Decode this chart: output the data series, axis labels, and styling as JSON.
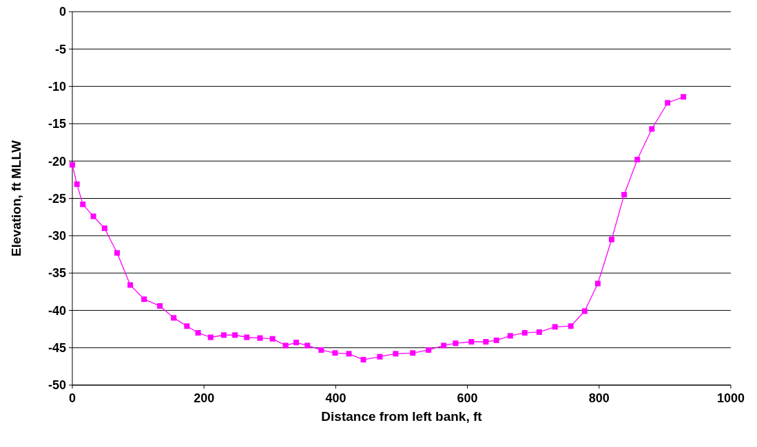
{
  "chart_data": {
    "type": "line",
    "xlabel": "Distance from left bank, ft",
    "ylabel": "Elevation, ft MLLW",
    "x": [
      0,
      7,
      16,
      32,
      49,
      68,
      88,
      109,
      133,
      154,
      174,
      191,
      210,
      230,
      247,
      265,
      285,
      304,
      324,
      340,
      357,
      378,
      399,
      420,
      442,
      467,
      491,
      517,
      541,
      564,
      582,
      606,
      628,
      644,
      665,
      687,
      709,
      733,
      757,
      778,
      798,
      819,
      838,
      858,
      880,
      904,
      928
    ],
    "series": [
      {
        "color": "#ff00ff",
        "values": [
          -20.5,
          -23.1,
          -25.8,
          -27.4,
          -29.0,
          -32.3,
          -36.6,
          -38.5,
          -39.4,
          -41.0,
          -42.1,
          -43.0,
          -43.6,
          -43.3,
          -43.3,
          -43.6,
          -43.7,
          -43.8,
          -44.7,
          -44.3,
          -44.7,
          -45.3,
          -45.7,
          -45.8,
          -46.6,
          -46.2,
          -45.8,
          -45.7,
          -45.3,
          -44.7,
          -44.4,
          -44.2,
          -44.2,
          -44.0,
          -43.4,
          -43.0,
          -42.9,
          -42.2,
          -42.1,
          -40.1,
          -36.4,
          -30.5,
          -24.5,
          -19.8,
          -15.7,
          -12.2,
          -11.4
        ]
      }
    ],
    "xlim": [
      0,
      1000
    ],
    "xticks": [
      0,
      200,
      400,
      600,
      800,
      1000
    ],
    "ylim": [
      -50,
      0
    ],
    "yticks": [
      -50,
      -45,
      -40,
      -35,
      -30,
      -25,
      -20,
      -15,
      -10,
      -5,
      0
    ],
    "grid": "y",
    "marker": "square",
    "line_style": "solid"
  }
}
